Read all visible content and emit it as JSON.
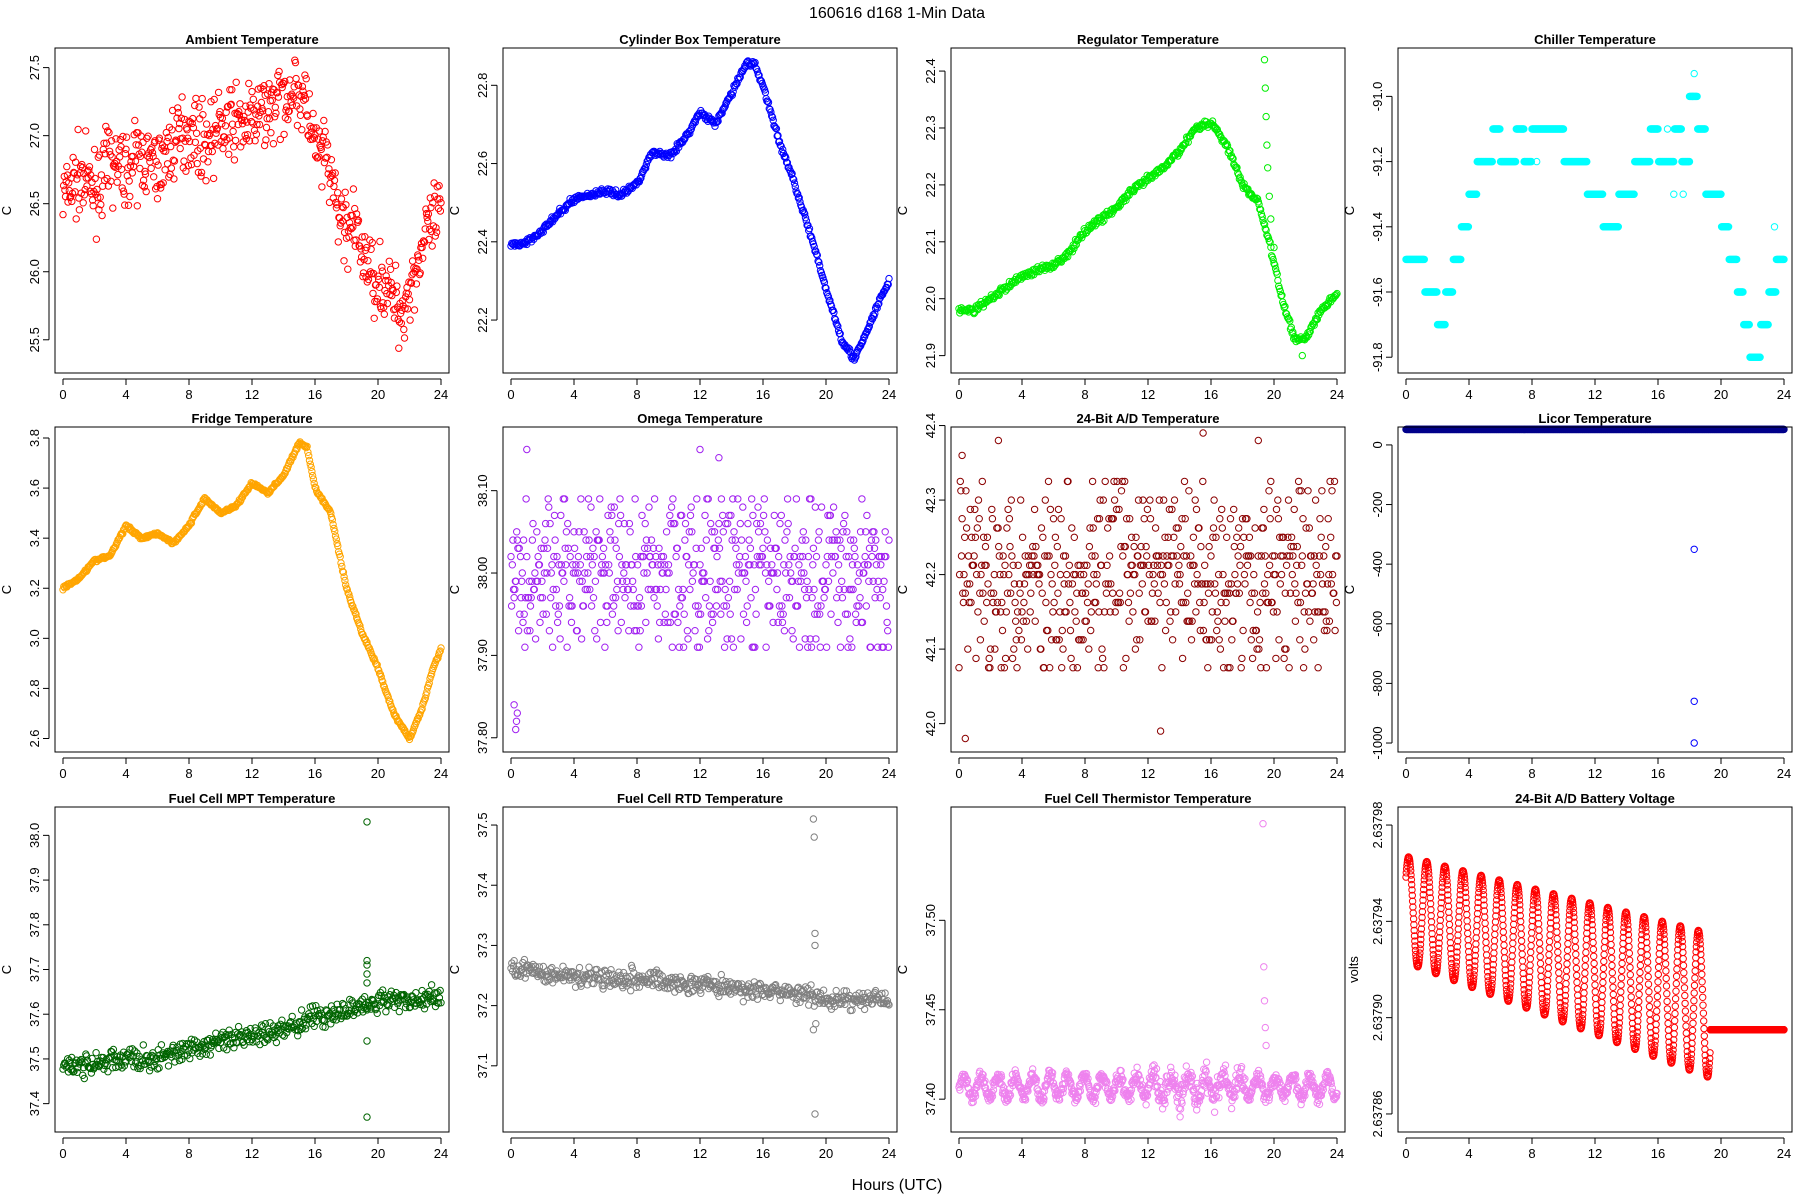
{
  "figure": {
    "title": "160616   d168   1-Min Data",
    "xlabel": "Hours (UTC)"
  },
  "chart_data": [
    {
      "type": "scatter",
      "title": "Ambient Temperature",
      "ylabel": "C",
      "color": "#ff0000",
      "xlim": [
        0,
        24
      ],
      "ylim": [
        25.3,
        27.6
      ],
      "xticks": [
        0,
        4,
        8,
        12,
        16,
        20,
        24
      ],
      "yticks": [
        25.5,
        26.0,
        26.5,
        27.0,
        27.5
      ],
      "ytick_labels": [
        "25.5",
        "26.0",
        "26.5",
        "27.0",
        "27.5"
      ],
      "kind": "noisy",
      "points": [
        [
          0,
          26.55
        ],
        [
          1,
          26.7
        ],
        [
          2,
          26.6
        ],
        [
          3,
          26.8
        ],
        [
          4,
          26.75
        ],
        [
          5,
          26.85
        ],
        [
          6,
          26.75
        ],
        [
          7,
          26.95
        ],
        [
          8,
          27.05
        ],
        [
          9,
          26.95
        ],
        [
          10,
          27.05
        ],
        [
          11,
          27.1
        ],
        [
          12,
          27.1
        ],
        [
          13,
          27.2
        ],
        [
          14,
          27.3
        ],
        [
          14.8,
          27.35
        ],
        [
          15.5,
          27.2
        ],
        [
          16,
          26.9
        ],
        [
          16.8,
          26.8
        ],
        [
          17.5,
          26.4
        ],
        [
          18.5,
          26.3
        ],
        [
          19.5,
          26.0
        ],
        [
          20.5,
          25.9
        ],
        [
          21.5,
          25.7
        ],
        [
          22.2,
          25.95
        ],
        [
          23,
          26.25
        ],
        [
          24,
          26.45
        ]
      ],
      "noise": 0.13,
      "step": 0.04
    },
    {
      "type": "scatter",
      "title": "Cylinder Box Temperature",
      "ylabel": "C",
      "color": "#0000ff",
      "xlim": [
        0,
        24
      ],
      "ylim": [
        22.08,
        22.88
      ],
      "xticks": [
        0,
        4,
        8,
        12,
        16,
        20,
        24
      ],
      "yticks": [
        22.2,
        22.4,
        22.6,
        22.8
      ],
      "ytick_labels": [
        "22.2",
        "22.4",
        "22.6",
        "22.8"
      ],
      "kind": "smooth",
      "points": [
        [
          0,
          22.39
        ],
        [
          1,
          22.4
        ],
        [
          2,
          22.43
        ],
        [
          3,
          22.47
        ],
        [
          4,
          22.51
        ],
        [
          5,
          22.52
        ],
        [
          6,
          22.53
        ],
        [
          7,
          22.52
        ],
        [
          8,
          22.55
        ],
        [
          9,
          22.63
        ],
        [
          10,
          22.62
        ],
        [
          11,
          22.66
        ],
        [
          12,
          22.73
        ],
        [
          13,
          22.7
        ],
        [
          14,
          22.78
        ],
        [
          15,
          22.86
        ],
        [
          15.5,
          22.85
        ],
        [
          16,
          22.8
        ],
        [
          17,
          22.66
        ],
        [
          18,
          22.55
        ],
        [
          19,
          22.42
        ],
        [
          20,
          22.28
        ],
        [
          21,
          22.15
        ],
        [
          21.8,
          22.1
        ],
        [
          22.5,
          22.16
        ],
        [
          23.3,
          22.24
        ],
        [
          24,
          22.3
        ]
      ],
      "noise": 0.004,
      "step": 0.05
    },
    {
      "type": "scatter",
      "title": "Regulator Temperature",
      "ylabel": "C",
      "color": "#00ee00",
      "xlim": [
        0,
        24
      ],
      "ylim": [
        21.88,
        22.43
      ],
      "xticks": [
        0,
        4,
        8,
        12,
        16,
        20,
        24
      ],
      "yticks": [
        21.9,
        22.0,
        22.1,
        22.2,
        22.3,
        22.4
      ],
      "ytick_labels": [
        "21.9",
        "22.0",
        "22.1",
        "22.2",
        "22.3",
        "22.4"
      ],
      "kind": "smooth",
      "points": [
        [
          0,
          21.98
        ],
        [
          1,
          21.98
        ],
        [
          2,
          22.0
        ],
        [
          3,
          22.02
        ],
        [
          4,
          22.04
        ],
        [
          5,
          22.05
        ],
        [
          6,
          22.06
        ],
        [
          7,
          22.08
        ],
        [
          8,
          22.12
        ],
        [
          9,
          22.14
        ],
        [
          10,
          22.16
        ],
        [
          11,
          22.19
        ],
        [
          12,
          22.21
        ],
        [
          13,
          22.23
        ],
        [
          14,
          22.26
        ],
        [
          15,
          22.3
        ],
        [
          16,
          22.31
        ],
        [
          17,
          22.27
        ],
        [
          18,
          22.2
        ],
        [
          19,
          22.17
        ],
        [
          19.7,
          22.1
        ],
        [
          20.5,
          22.0
        ],
        [
          21.3,
          21.93
        ],
        [
          22,
          21.93
        ],
        [
          23,
          21.98
        ],
        [
          24,
          22.01
        ]
      ],
      "noise": 0.003,
      "step": 0.05,
      "extra": [
        [
          19.4,
          22.42
        ],
        [
          19.45,
          22.37
        ],
        [
          19.5,
          22.32
        ],
        [
          19.55,
          22.27
        ],
        [
          19.6,
          22.23
        ],
        [
          19.7,
          22.18
        ],
        [
          19.8,
          22.14
        ],
        [
          20.0,
          22.09
        ],
        [
          21.8,
          21.9
        ]
      ]
    },
    {
      "type": "scatter",
      "title": "Chiller Temperature",
      "ylabel": "C",
      "color": "#00ffff",
      "xlim": [
        0,
        24
      ],
      "ylim": [
        -91.83,
        -90.87
      ],
      "xticks": [
        0,
        4,
        8,
        12,
        16,
        20,
        24
      ],
      "yticks": [
        -91.8,
        -91.6,
        -91.4,
        -91.2,
        -91.0
      ],
      "ytick_labels": [
        "-91.8",
        "-91.6",
        "-91.4",
        "-91.2",
        "-91.0"
      ],
      "kind": "segments",
      "points": [
        [
          0,
          -91.5
        ],
        [
          1.2,
          -91.6
        ],
        [
          2,
          -91.7
        ],
        [
          2.5,
          -91.6
        ],
        [
          3,
          -91.5
        ],
        [
          3.5,
          -91.4
        ],
        [
          4,
          -91.3
        ],
        [
          4.5,
          -91.2
        ],
        [
          5.5,
          -91.1
        ],
        [
          6,
          -91.2
        ],
        [
          7,
          -91.1
        ],
        [
          7.5,
          -91.2
        ],
        [
          8,
          -91.1
        ],
        [
          9,
          -91.1
        ],
        [
          10,
          -91.2
        ],
        [
          11,
          -91.2
        ],
        [
          11.5,
          -91.3
        ],
        [
          12,
          -91.3
        ],
        [
          12.5,
          -91.4
        ],
        [
          13.5,
          -91.3
        ],
        [
          14.5,
          -91.2
        ],
        [
          15.5,
          -91.1
        ],
        [
          16,
          -91.2
        ],
        [
          17,
          -91.1
        ],
        [
          17.5,
          -91.2
        ],
        [
          18,
          -91.0
        ],
        [
          18.5,
          -91.1
        ],
        [
          19,
          -91.3
        ],
        [
          19.5,
          -91.3
        ],
        [
          20,
          -91.4
        ],
        [
          20.5,
          -91.5
        ],
        [
          21,
          -91.6
        ],
        [
          21.4,
          -91.7
        ],
        [
          21.8,
          -91.8
        ],
        [
          22.5,
          -91.7
        ],
        [
          23,
          -91.6
        ],
        [
          23.5,
          -91.5
        ],
        [
          24,
          -91.5
        ]
      ],
      "noise": 0,
      "step": 0.04,
      "extra": [
        [
          18.3,
          -90.93
        ],
        [
          18.0,
          -91.0
        ],
        [
          18.2,
          -91.0
        ],
        [
          16.6,
          -91.1
        ],
        [
          7.5,
          -91.2
        ],
        [
          8.3,
          -91.2
        ],
        [
          17.0,
          -91.3
        ],
        [
          17.6,
          -91.3
        ],
        [
          23.4,
          -91.4
        ],
        [
          14.0,
          -91.3
        ]
      ]
    },
    {
      "type": "scatter",
      "title": "Fridge Temperature",
      "ylabel": "C",
      "color": "#ffa500",
      "xlim": [
        0,
        24
      ],
      "ylim": [
        2.57,
        3.82
      ],
      "xticks": [
        0,
        4,
        8,
        12,
        16,
        20,
        24
      ],
      "yticks": [
        2.6,
        2.8,
        3.0,
        3.2,
        3.4,
        3.6,
        3.8
      ],
      "ytick_labels": [
        "2.6",
        "2.8",
        "3.0",
        "3.2",
        "3.4",
        "3.6",
        "3.8"
      ],
      "kind": "smooth",
      "points": [
        [
          0,
          3.2
        ],
        [
          1,
          3.24
        ],
        [
          2,
          3.31
        ],
        [
          3,
          3.33
        ],
        [
          4,
          3.45
        ],
        [
          5,
          3.4
        ],
        [
          6,
          3.42
        ],
        [
          7,
          3.38
        ],
        [
          8,
          3.45
        ],
        [
          9,
          3.56
        ],
        [
          10,
          3.5
        ],
        [
          11,
          3.53
        ],
        [
          12,
          3.62
        ],
        [
          13,
          3.58
        ],
        [
          14,
          3.65
        ],
        [
          15,
          3.78
        ],
        [
          15.5,
          3.76
        ],
        [
          16,
          3.6
        ],
        [
          17,
          3.5
        ],
        [
          18,
          3.2
        ],
        [
          19,
          3.02
        ],
        [
          20,
          2.88
        ],
        [
          21,
          2.7
        ],
        [
          22,
          2.6
        ],
        [
          22.8,
          2.72
        ],
        [
          23.5,
          2.88
        ],
        [
          24,
          2.96
        ]
      ],
      "noise": 0.003,
      "step": 0.05
    },
    {
      "type": "scatter",
      "title": "Omega Temperature",
      "ylabel": "C",
      "color": "#a020f0",
      "xlim": [
        0,
        24
      ],
      "ylim": [
        37.79,
        38.17
      ],
      "xticks": [
        0,
        4,
        8,
        12,
        16,
        20,
        24
      ],
      "yticks": [
        37.8,
        37.9,
        38.0,
        38.1
      ],
      "ytick_labels": [
        "37.80",
        "37.90",
        "38.00",
        "38.10"
      ],
      "kind": "quantized",
      "center": 38.0,
      "spread": 0.09,
      "quantum": 0.01,
      "step": 0.04,
      "extra": [
        [
          0.3,
          37.81
        ],
        [
          0.35,
          37.82
        ],
        [
          0.4,
          37.83
        ],
        [
          0.2,
          37.84
        ],
        [
          1,
          38.15
        ],
        [
          12,
          38.15
        ],
        [
          13.2,
          38.14
        ]
      ]
    },
    {
      "type": "scatter",
      "title": "24-Bit A/D Temperature",
      "ylabel": "C",
      "color": "#8b0000",
      "xlim": [
        0,
        24
      ],
      "ylim": [
        41.97,
        42.39
      ],
      "xticks": [
        0,
        4,
        8,
        12,
        16,
        20,
        24
      ],
      "yticks": [
        42.0,
        42.1,
        42.2,
        42.3,
        42.4
      ],
      "ytick_labels": [
        "42.0",
        "42.1",
        "42.2",
        "42.3",
        "42.4"
      ],
      "kind": "quantized",
      "center": 42.2,
      "spread": 0.12,
      "quantum": 0.0125,
      "step": 0.04,
      "extra": [
        [
          0.2,
          42.36
        ],
        [
          2.5,
          42.38
        ],
        [
          15.5,
          42.39
        ],
        [
          19,
          42.38
        ],
        [
          0.4,
          41.98
        ],
        [
          12.8,
          41.99
        ]
      ]
    },
    {
      "type": "scatter",
      "title": "Licor Temperature",
      "ylabel": "C",
      "color": "#00008b",
      "xlim": [
        0,
        24
      ],
      "ylim": [
        -1010,
        40
      ],
      "xticks": [
        0,
        4,
        8,
        12,
        16,
        20,
        24
      ],
      "yticks": [
        -1000,
        -800,
        -600,
        -400,
        -200,
        0
      ],
      "ytick_labels": [
        "-1000",
        "-800",
        "-600",
        "-400",
        "-200",
        "0"
      ],
      "kind": "smooth",
      "points": [
        [
          0,
          52
        ],
        [
          24,
          52
        ]
      ],
      "noise": 0,
      "step": 0.02,
      "extra": [
        [
          18.3,
          -350
        ],
        [
          18.3,
          -860
        ],
        [
          18.3,
          -1000
        ]
      ],
      "extra_color": "#0000ff"
    },
    {
      "type": "scatter",
      "title": "Fuel Cell MPT Temperature",
      "ylabel": "C",
      "color": "#006400",
      "xlim": [
        0,
        24
      ],
      "ylim": [
        37.35,
        38.05
      ],
      "xticks": [
        0,
        4,
        8,
        12,
        16,
        20,
        24
      ],
      "yticks": [
        37.4,
        37.5,
        37.6,
        37.7,
        37.8,
        37.9,
        38.0
      ],
      "ytick_labels": [
        "37.4",
        "37.5",
        "37.6",
        "37.7",
        "37.8",
        "37.9",
        "38.0"
      ],
      "kind": "noisy",
      "points": [
        [
          0,
          37.48
        ],
        [
          2,
          37.49
        ],
        [
          4,
          37.5
        ],
        [
          6,
          37.5
        ],
        [
          8,
          37.52
        ],
        [
          10,
          37.54
        ],
        [
          12,
          37.55
        ],
        [
          14,
          37.57
        ],
        [
          16,
          37.59
        ],
        [
          18,
          37.61
        ],
        [
          19.3,
          37.62
        ],
        [
          20,
          37.63
        ],
        [
          22,
          37.63
        ],
        [
          24,
          37.64
        ]
      ],
      "noise": 0.012,
      "step": 0.05,
      "extra": [
        [
          19.3,
          38.03
        ],
        [
          19.3,
          37.72
        ],
        [
          19.3,
          37.71
        ],
        [
          19.3,
          37.69
        ],
        [
          19.3,
          37.67
        ],
        [
          19.3,
          37.54
        ],
        [
          19.3,
          37.37
        ]
      ]
    },
    {
      "type": "scatter",
      "title": "Fuel Cell RTD Temperature",
      "ylabel": "C",
      "color": "#808080",
      "xlim": [
        0,
        24
      ],
      "ylim": [
        37.0,
        37.52
      ],
      "xticks": [
        0,
        4,
        8,
        12,
        16,
        20,
        24
      ],
      "yticks": [
        37.1,
        37.2,
        37.3,
        37.4,
        37.5
      ],
      "ytick_labels": [
        "37.1",
        "37.2",
        "37.3",
        "37.4",
        "37.5"
      ],
      "kind": "noisy",
      "points": [
        [
          0,
          37.26
        ],
        [
          4,
          37.25
        ],
        [
          8,
          37.245
        ],
        [
          12,
          37.235
        ],
        [
          16,
          37.225
        ],
        [
          19,
          37.215
        ],
        [
          19.6,
          37.21
        ],
        [
          24,
          37.21
        ]
      ],
      "noise": 0.008,
      "step": 0.05,
      "extra": [
        [
          19.2,
          37.51
        ],
        [
          19.25,
          37.48
        ],
        [
          19.3,
          37.32
        ],
        [
          19.3,
          37.3
        ],
        [
          19.35,
          37.17
        ],
        [
          19.2,
          37.16
        ],
        [
          19.3,
          37.02
        ]
      ]
    },
    {
      "type": "scatter",
      "title": "Fuel Cell Thermistor Temperature",
      "ylabel": "C",
      "color": "#ee82ee",
      "xlim": [
        0,
        24
      ],
      "ylim": [
        37.385,
        37.56
      ],
      "xticks": [
        0,
        4,
        8,
        12,
        16,
        20,
        24
      ],
      "yticks": [
        37.4,
        37.45,
        37.5
      ],
      "ytick_labels": [
        "37.40",
        "37.45",
        "37.50"
      ],
      "kind": "wave",
      "center": 37.407,
      "amp": 0.006,
      "period": 1.1,
      "noise": 0.002,
      "step": 0.03,
      "extra": [
        [
          19.3,
          37.554
        ],
        [
          19.35,
          37.474
        ],
        [
          19.4,
          37.455
        ],
        [
          19.45,
          37.44
        ],
        [
          19.5,
          37.43
        ]
      ]
    },
    {
      "type": "scatter",
      "title": "24-Bit A/D Battery Voltage",
      "ylabel": "volts",
      "color": "#ff0000",
      "xlim": [
        0,
        24
      ],
      "ylim": [
        2.637855,
        2.637985
      ],
      "xticks": [
        0,
        4,
        8,
        12,
        16,
        20,
        24
      ],
      "yticks": [
        2.63786,
        2.6379,
        2.63794,
        2.63798
      ],
      "ytick_labels": [
        "2.63786",
        "2.63790",
        "2.63794",
        "2.63798"
      ],
      "kind": "battery",
      "step": 0.02
    }
  ]
}
